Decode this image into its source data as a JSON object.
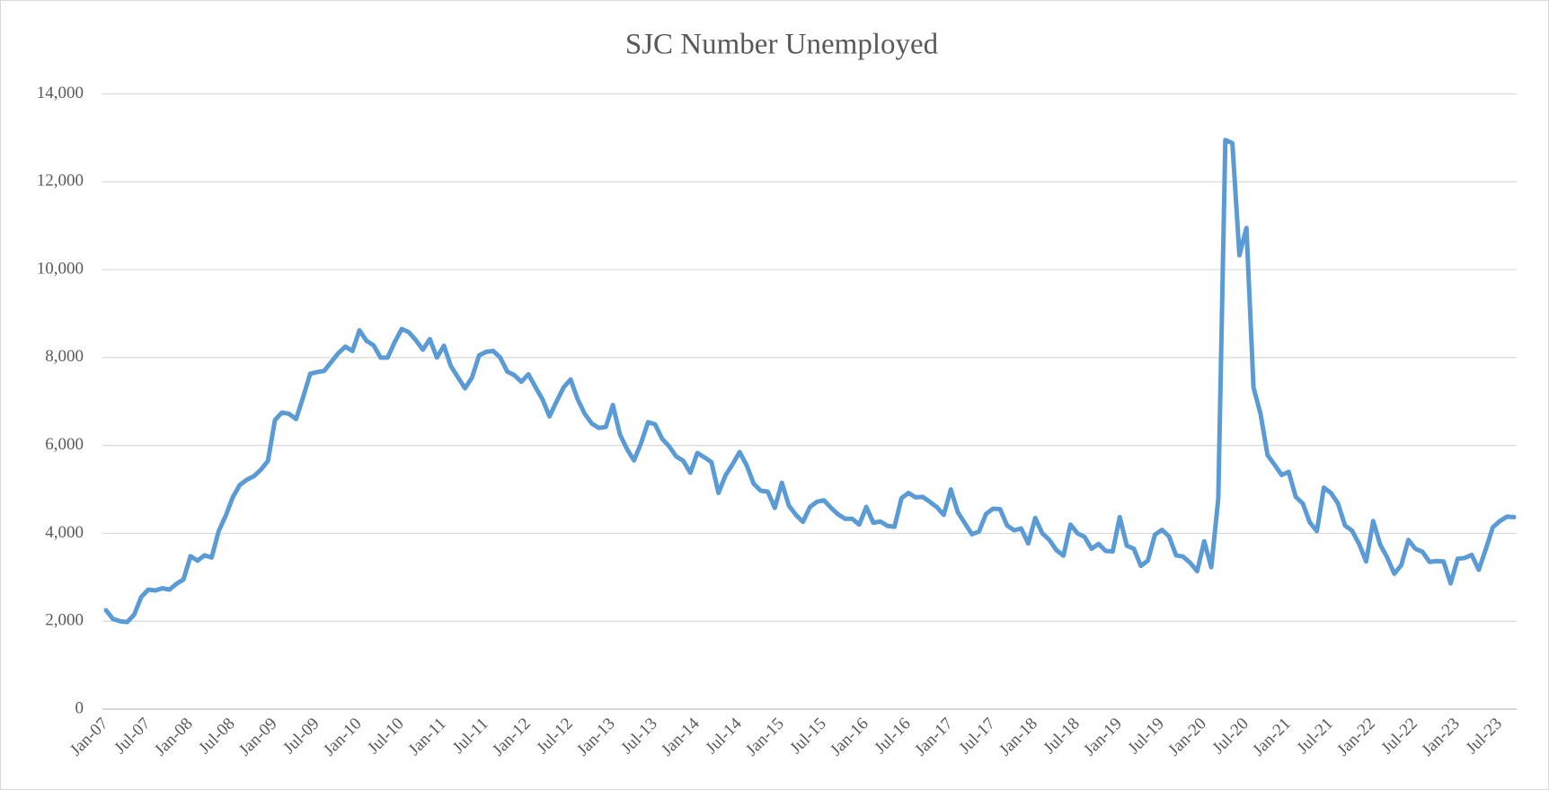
{
  "chart_data": {
    "type": "line",
    "title": "SJC Number Unemployed",
    "categories": [
      "Jan-07",
      null,
      null,
      null,
      null,
      null,
      "Jul-07",
      null,
      null,
      null,
      null,
      null,
      "Jan-08",
      null,
      null,
      null,
      null,
      null,
      "Jul-08",
      null,
      null,
      null,
      null,
      null,
      "Jan-09",
      null,
      null,
      null,
      null,
      null,
      "Jul-09",
      null,
      null,
      null,
      null,
      null,
      "Jan-10",
      null,
      null,
      null,
      null,
      null,
      "Jul-10",
      null,
      null,
      null,
      null,
      null,
      "Jan-11",
      null,
      null,
      null,
      null,
      null,
      "Jul-11",
      null,
      null,
      null,
      null,
      null,
      "Jan-12",
      null,
      null,
      null,
      null,
      null,
      "Jul-12",
      null,
      null,
      null,
      null,
      null,
      "Jan-13",
      null,
      null,
      null,
      null,
      null,
      "Jul-13",
      null,
      null,
      null,
      null,
      null,
      "Jan-14",
      null,
      null,
      null,
      null,
      null,
      "Jul-14",
      null,
      null,
      null,
      null,
      null,
      "Jan-15",
      null,
      null,
      null,
      null,
      null,
      "Jul-15",
      null,
      null,
      null,
      null,
      null,
      "Jan-16",
      null,
      null,
      null,
      null,
      null,
      "Jul-16",
      null,
      null,
      null,
      null,
      null,
      "Jan-17",
      null,
      null,
      null,
      null,
      null,
      "Jul-17",
      null,
      null,
      null,
      null,
      null,
      "Jan-18",
      null,
      null,
      null,
      null,
      null,
      "Jul-18",
      null,
      null,
      null,
      null,
      null,
      "Jan-19",
      null,
      null,
      null,
      null,
      null,
      "Jul-19",
      null,
      null,
      null,
      null,
      null,
      "Jan-20",
      null,
      null,
      null,
      null,
      null,
      "Jul-20",
      null,
      null,
      null,
      null,
      null,
      "Jan-21",
      null,
      null,
      null,
      null,
      null,
      "Jul-21",
      null,
      null,
      null,
      null,
      null,
      "Jan-22",
      null,
      null,
      null,
      null,
      null,
      "Jul-22",
      null,
      null,
      null,
      null,
      null,
      "Jan-23",
      null,
      null,
      null,
      null,
      null,
      "Jul-23",
      null,
      null
    ],
    "series": [
      {
        "color": "#5b9bd5",
        "values": [
          2250,
          2050,
          2000,
          1980,
          2150,
          2550,
          2720,
          2700,
          2750,
          2720,
          2850,
          2950,
          3480,
          3380,
          3500,
          3450,
          4050,
          4400,
          4820,
          5100,
          5220,
          5300,
          5450,
          5650,
          6580,
          6750,
          6720,
          6600,
          7100,
          7630,
          7670,
          7700,
          7900,
          8100,
          8250,
          8150,
          8620,
          8380,
          8280,
          8000,
          8000,
          8350,
          8650,
          8580,
          8400,
          8180,
          8420,
          8000,
          8270,
          7800,
          7550,
          7300,
          7550,
          8050,
          8130,
          8150,
          8000,
          7680,
          7600,
          7450,
          7620,
          7330,
          7050,
          6660,
          7000,
          7320,
          7500,
          7050,
          6720,
          6500,
          6400,
          6420,
          6920,
          6250,
          5920,
          5660,
          6050,
          6530,
          6480,
          6150,
          5980,
          5750,
          5650,
          5380,
          5830,
          5730,
          5620,
          4920,
          5320,
          5570,
          5850,
          5550,
          5130,
          4970,
          4950,
          4580,
          5150,
          4630,
          4420,
          4260,
          4600,
          4720,
          4750,
          4580,
          4430,
          4330,
          4330,
          4200,
          4600,
          4240,
          4270,
          4170,
          4150,
          4800,
          4920,
          4820,
          4830,
          4720,
          4600,
          4420,
          5000,
          4480,
          4230,
          3980,
          4040,
          4440,
          4560,
          4550,
          4180,
          4070,
          4110,
          3770,
          4350,
          4000,
          3850,
          3620,
          3490,
          4200,
          4000,
          3920,
          3650,
          3760,
          3600,
          3590,
          4370,
          3720,
          3650,
          3260,
          3380,
          3970,
          4080,
          3930,
          3500,
          3470,
          3330,
          3140,
          3820,
          3230,
          4790,
          12950,
          12880,
          10330,
          10950,
          7320,
          6720,
          5780,
          5560,
          5330,
          5400,
          4830,
          4680,
          4250,
          4050,
          5040,
          4920,
          4680,
          4180,
          4060,
          3760,
          3360,
          4280,
          3740,
          3450,
          3080,
          3280,
          3850,
          3650,
          3580,
          3350,
          3370,
          3360,
          2860,
          3420,
          3440,
          3510,
          3170,
          3640,
          4140,
          4280,
          4380,
          4370
        ]
      }
    ],
    "ylim": [
      0,
      14000
    ],
    "yticks": [
      0,
      {
        "value": 2000,
        "label": "2,000"
      },
      {
        "value": 4000,
        "label": "4,000"
      },
      {
        "value": 6000,
        "label": "6,000"
      },
      {
        "value": 8000,
        "label": "8,000"
      },
      {
        "value": 10000,
        "label": "10,000"
      },
      {
        "value": 12000,
        "label": "12,000"
      },
      {
        "value": 14000,
        "label": "14,000"
      }
    ],
    "grid": true
  }
}
